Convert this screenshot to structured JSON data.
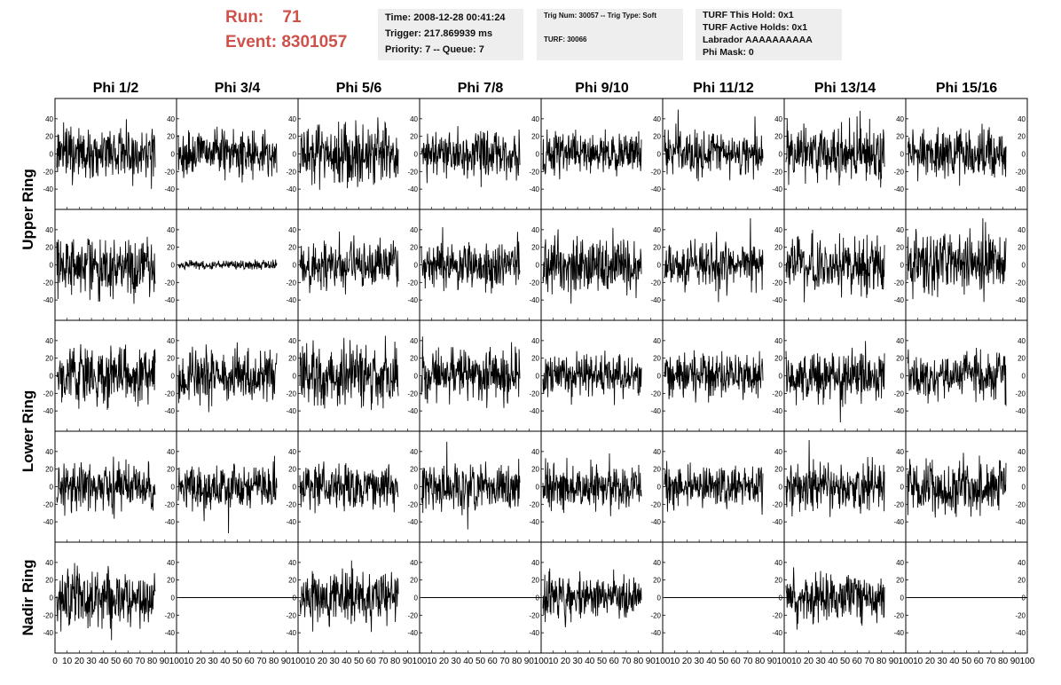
{
  "header": {
    "run_label": "Run:    71",
    "event_label": "Event: 8301057"
  },
  "info": {
    "time": "Time: 2008-12-28 00:41:24",
    "trigger": "Trigger: 217.869939 ms",
    "priority": "Priority: 7 -- Queue: 7",
    "trig_num": "Trig Num: 30057 -- Trig Type: Soft",
    "turf": "TURF: 30066",
    "turf_hold": "TURF This Hold: 0x1",
    "turf_active": "TURF Active Holds: 0x1",
    "labrador": "Labrador AAAAAAAAAA",
    "phi_mask": "Phi Mask: 0"
  },
  "chart_data": {
    "type": "line",
    "columns": [
      "Phi 1/2",
      "Phi 3/4",
      "Phi 5/6",
      "Phi 7/8",
      "Phi 9/10",
      "Phi 11/12",
      "Phi 13/14",
      "Phi 15/16"
    ],
    "row_labels": [
      "Upper Ring",
      "Lower Ring",
      "Nadir Ring"
    ],
    "ylim": [
      -55,
      55
    ],
    "yticks": [
      40,
      20,
      0,
      -20,
      -40
    ],
    "xlim": [
      0,
      100
    ],
    "xtick_labels": [
      "0",
      "10",
      "20",
      "30",
      "40",
      "50",
      "60",
      "70",
      "80",
      "90",
      "100"
    ],
    "samples_per_trace": 260,
    "amplitude_grid": [
      [
        15,
        13,
        16,
        13,
        12,
        12,
        15,
        14
      ],
      [
        17,
        2.5,
        14,
        14,
        15,
        13,
        15,
        16
      ],
      [
        15,
        14,
        17,
        14,
        12,
        12,
        14,
        13
      ],
      [
        13,
        12,
        13,
        13,
        12,
        12,
        13,
        14
      ],
      [
        15,
        0,
        15,
        0,
        12,
        0,
        13,
        0
      ]
    ],
    "grid": true
  }
}
